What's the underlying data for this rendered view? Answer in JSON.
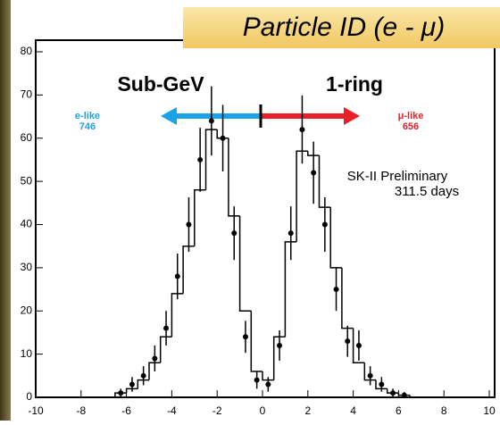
{
  "chart_data": {
    "type": "histogram",
    "title": "Particle ID (e - μ)",
    "bins": [
      -7,
      -6.5,
      -6,
      -5.5,
      -5,
      -4.5,
      -4,
      -3.5,
      -3,
      -2.5,
      -2,
      -1.5,
      -1,
      -0.5,
      0,
      0.5,
      1,
      1.5,
      2,
      2.5,
      3,
      3.5,
      4,
      4.5,
      5,
      5.5,
      6,
      6.5,
      7
    ],
    "values": [
      0,
      1,
      2,
      4,
      8,
      14,
      24,
      35,
      48,
      62,
      60,
      42,
      20,
      6,
      4,
      14,
      36,
      57,
      56,
      44,
      30,
      16,
      8,
      4,
      2,
      1,
      0.5,
      0
    ],
    "color": "#000000",
    "points": {
      "x": [
        -6.25,
        -5.75,
        -5.25,
        -4.75,
        -4.25,
        -3.75,
        -3.25,
        -2.75,
        -2.25,
        -1.75,
        -1.25,
        -0.75,
        -0.25,
        0.25,
        0.75,
        1.25,
        1.75,
        2.25,
        2.75,
        3.25,
        3.75,
        4.25,
        4.75,
        5.25,
        5.75,
        6.25
      ],
      "values": [
        1,
        3,
        5,
        9,
        16,
        28,
        40,
        55,
        64,
        60,
        38,
        14,
        4,
        3,
        12,
        38,
        62,
        52,
        40,
        25,
        13,
        12,
        5,
        3,
        1,
        0.5
      ],
      "errors": [
        1,
        1.7,
        2.2,
        3,
        4,
        5.3,
        6.3,
        7.4,
        8,
        7.7,
        6.2,
        3.7,
        2,
        1.7,
        3.5,
        6.2,
        7.9,
        7.2,
        6.3,
        5,
        3.6,
        3.5,
        2.2,
        1.7,
        1,
        0.7
      ]
    },
    "xlim": [
      -10,
      10
    ],
    "xticks": [
      -10,
      -8,
      -6,
      -4,
      -2,
      0,
      2,
      4,
      6,
      8,
      10
    ],
    "ylim": [
      0,
      80
    ],
    "yticks": [
      0,
      10,
      20,
      30,
      40,
      50,
      60,
      70,
      80
    ],
    "annotations": {
      "sample": "Sub-GeV",
      "rings": "1-ring",
      "e_label": "e-like",
      "e_count": "746",
      "mu_label": "μ-like",
      "mu_count": "656",
      "experiment": "SK-II Preliminary",
      "livetime": "311.5 days"
    },
    "e_color": "#1aa3e8",
    "mu_color": "#e8202a"
  }
}
